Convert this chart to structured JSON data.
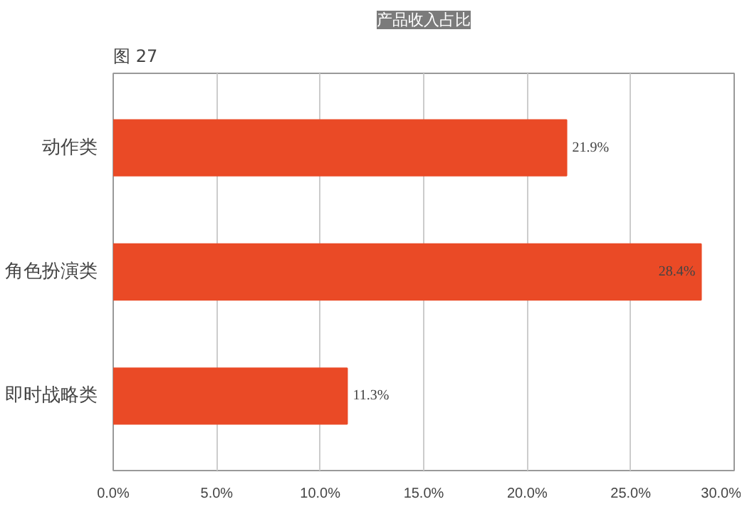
{
  "chart_data": {
    "type": "bar",
    "orientation": "horizontal",
    "title": "产品收入占比",
    "annotations": [
      "图 27"
    ],
    "categories": [
      "动作类",
      "角色扮演类",
      "即时战略类"
    ],
    "values": [
      21.9,
      28.4,
      11.3
    ],
    "color": "#ea4a26",
    "value_labels": [
      "21.9%",
      "28.4%",
      "11.3%"
    ],
    "xlim": [
      0,
      30
    ],
    "xticks": [
      {
        "value": 0,
        "label": "0.0%"
      },
      {
        "value": 5,
        "label": "5.0%"
      },
      {
        "value": 10,
        "label": "10.0%"
      },
      {
        "value": 15,
        "label": "15.0%"
      },
      {
        "value": 20,
        "label": "20.0%"
      },
      {
        "value": 25,
        "label": "25.0%"
      },
      {
        "value": 30,
        "label": "30.0%"
      }
    ],
    "grid": "x"
  }
}
